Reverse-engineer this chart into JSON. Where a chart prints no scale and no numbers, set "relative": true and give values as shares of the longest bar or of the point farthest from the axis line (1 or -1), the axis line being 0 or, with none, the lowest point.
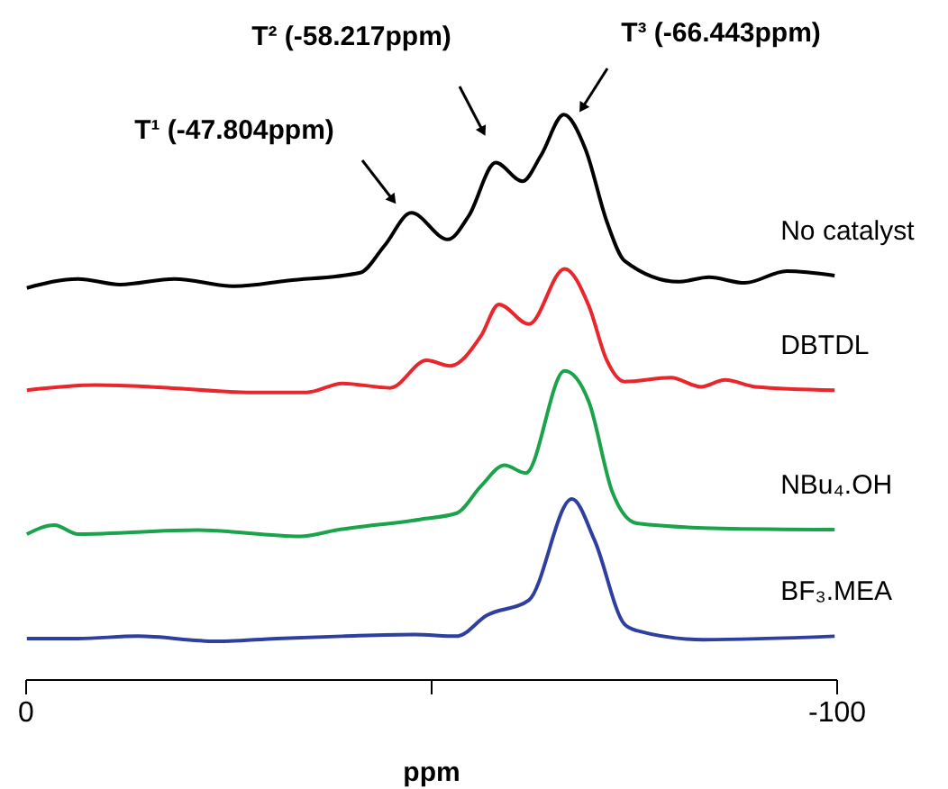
{
  "chart_data": {
    "type": "line",
    "relative": true,
    "xlabel": "ppm",
    "xlim": [
      0,
      -100
    ],
    "xticks": [
      0,
      {
        "value": -50,
        "label": null
      },
      -100
    ],
    "grid": false,
    "legend": false,
    "marker": "none",
    "line_style": "solid",
    "annotations": [
      "T¹ (-47.804ppm)",
      "T² (-58.217ppm)",
      "T³ (-66.443ppm)"
    ],
    "series": [
      {
        "name": "No catalyst",
        "color": "#000000",
        "x": [
          -0.2,
          -6.5,
          -11.7,
          -18.4,
          -25.8,
          -32.4,
          -41.3,
          -44.3,
          -47.6,
          -52.1,
          -54.7,
          -58.0,
          -61.3,
          -63.6,
          -66.4,
          -69.1,
          -71.7,
          -73.9,
          -80.6,
          -84.3,
          -88.7,
          -93.9,
          -99.8
        ],
        "values": [
          0.693,
          0.709,
          0.699,
          0.709,
          0.696,
          0.706,
          0.72,
          0.768,
          0.826,
          0.779,
          0.821,
          0.915,
          0.882,
          0.928,
          1.0,
          0.938,
          0.811,
          0.741,
          0.704,
          0.712,
          0.702,
          0.723,
          0.715
        ]
      },
      {
        "name": "DBTDL",
        "color": "#e8262b",
        "x": [
          -0.2,
          -8.7,
          -15.4,
          -28.0,
          -34.7,
          -39.1,
          -45.0,
          -49.5,
          -52.4,
          -56.2,
          -58.4,
          -62.1,
          -66.5,
          -69.5,
          -71.7,
          -73.9,
          -79.6,
          -83.3,
          -86.3,
          -90.0,
          -99.8
        ],
        "values": [
          0.512,
          0.521,
          0.518,
          0.508,
          0.508,
          0.524,
          0.516,
          0.565,
          0.555,
          0.608,
          0.664,
          0.629,
          0.727,
          0.661,
          0.565,
          0.527,
          0.534,
          0.518,
          0.53,
          0.518,
          0.512
        ]
      },
      {
        "name": "NBu₄.OH",
        "color": "#1aa34a",
        "x": [
          -0.2,
          -3.6,
          -6.5,
          -21.3,
          -33.9,
          -38.4,
          -48.7,
          -53.2,
          -56.2,
          -59.1,
          -61.7,
          -66.5,
          -69.5,
          -72.4,
          -75.4,
          -85.8,
          -99.8
        ],
        "values": [
          0.257,
          0.273,
          0.257,
          0.264,
          0.253,
          0.264,
          0.283,
          0.294,
          0.342,
          0.379,
          0.365,
          0.546,
          0.491,
          0.331,
          0.276,
          0.267,
          0.265
        ]
      },
      {
        "name": "BF₃.MEA",
        "color": "#2e3fa0",
        "x": [
          -0.2,
          -6.5,
          -13.9,
          -23.6,
          -31.0,
          -39.1,
          -48.0,
          -53.2,
          -56.9,
          -62.1,
          -67.4,
          -70.2,
          -73.9,
          -75.4,
          -83.6,
          -99.8
        ],
        "values": [
          0.072,
          0.072,
          0.076,
          0.067,
          0.072,
          0.076,
          0.079,
          0.076,
          0.113,
          0.14,
          0.319,
          0.246,
          0.097,
          0.086,
          0.07,
          0.076
        ]
      }
    ]
  }
}
